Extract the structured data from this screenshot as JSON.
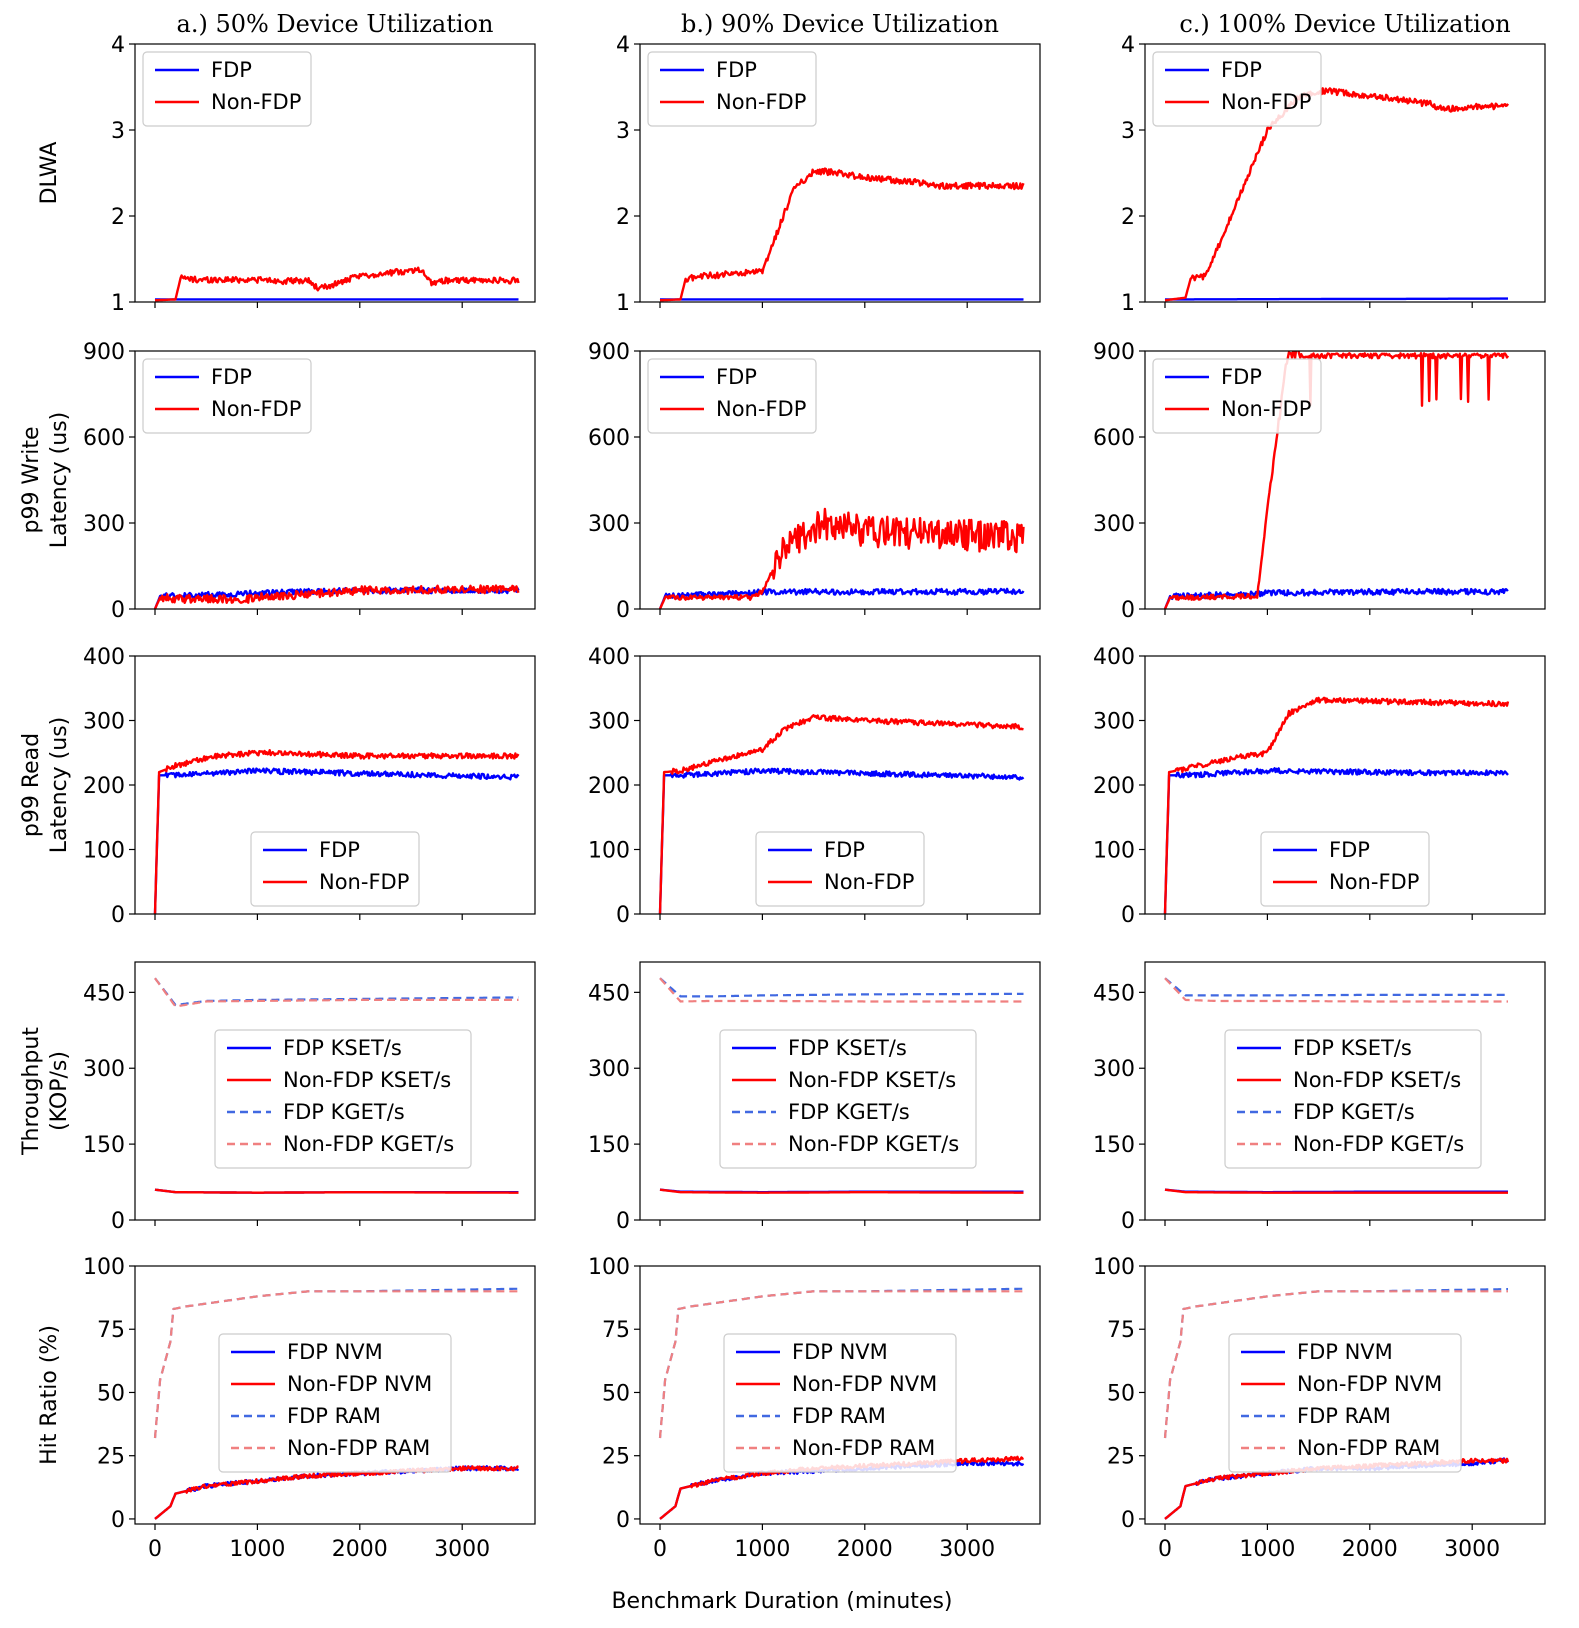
{
  "chart_data": {
    "type": "line",
    "x_axis": {
      "label": "Benchmark Duration (minutes)",
      "ticks": [
        0,
        1000,
        2000,
        3000
      ]
    },
    "columns": [
      {
        "title": "a.) 50% Device Utilization",
        "x_max": 3550
      },
      {
        "title": "b.) 90% Device Utilization",
        "x_max": 3550
      },
      {
        "title": "c.) 100% Device Utilization",
        "x_max": 3350
      }
    ],
    "rows": [
      {
        "id": "dlwa",
        "ylabel": [
          "DLWA"
        ],
        "ylim": [
          1,
          4
        ],
        "yticks": [
          1,
          2,
          3,
          4
        ],
        "legend_loc": "upper-left",
        "series": [
          {
            "name": "FDP",
            "color": "#0000ff",
            "dashed": false,
            "x": [
              0,
              3550
            ],
            "values": [
              [
                1.03,
                1.03
              ],
              [
                1.03,
                1.03
              ],
              [
                1.03,
                1.04
              ]
            ]
          },
          {
            "name": "Non-FDP",
            "color": "#ff0000",
            "dashed": false,
            "x": [
              0,
              200,
              250,
              400,
              1000,
              1300,
              1500,
              1600,
              2000,
              2600,
              2700,
              2800,
              3550
            ],
            "values": [
              [
                1.02,
                1.03,
                1.28,
                1.26,
                1.26,
                1.24,
                1.25,
                1.15,
                1.3,
                1.38,
                1.22,
                1.25,
                1.25
              ],
              [
                1.02,
                1.03,
                1.27,
                1.3,
                1.35,
                2.3,
                2.52,
                2.52,
                2.45,
                2.38,
                2.35,
                2.35,
                2.35
              ],
              [
                1.02,
                1.05,
                1.27,
                1.3,
                3.0,
                3.38,
                3.45,
                3.45,
                3.4,
                3.3,
                3.25,
                3.25,
                3.3
              ]
            ]
          }
        ]
      },
      {
        "id": "write",
        "ylabel": [
          "p99  Write",
          "Latency (us)"
        ],
        "ylim": [
          0,
          900
        ],
        "yticks": [
          0,
          300,
          600,
          900
        ],
        "legend_loc": "upper-left",
        "series": [
          {
            "name": "FDP",
            "color": "#0000ff",
            "dashed": false,
            "x": [
              0,
              50,
              200,
              1000,
              2000,
              3550
            ],
            "values": [
              [
                0,
                45,
                45,
                55,
                65,
                65
              ],
              [
                0,
                45,
                45,
                60,
                60,
                60
              ],
              [
                0,
                45,
                45,
                55,
                60,
                60
              ]
            ]
          },
          {
            "name": "Non-FDP",
            "color": "#ff0000",
            "dashed": false,
            "x": [
              0,
              50,
              200,
              900,
              1000,
              1200,
              1600,
              2000,
              3550
            ],
            "values": [
              [
                0,
                40,
                35,
                35,
                40,
                45,
                55,
                65,
                70
              ],
              [
                0,
                40,
                40,
                40,
                60,
                210,
                300,
                270,
                250
              ],
              [
                0,
                40,
                40,
                45,
                350,
                890,
                900,
                900,
                900
              ]
            ]
          }
        ]
      },
      {
        "id": "read",
        "ylabel": [
          "p99  Read",
          "Latency (us)"
        ],
        "ylim": [
          0,
          400
        ],
        "yticks": [
          0,
          100,
          200,
          300,
          400
        ],
        "legend_loc": "lower-center",
        "series": [
          {
            "name": "FDP",
            "color": "#0000ff",
            "dashed": false,
            "x": [
              0,
              40,
              200,
              1000,
              2000,
              3550
            ],
            "values": [
              [
                0,
                215,
                215,
                222,
                218,
                212
              ],
              [
                0,
                215,
                215,
                222,
                218,
                212
              ],
              [
                0,
                215,
                215,
                222,
                220,
                218
              ]
            ]
          },
          {
            "name": "Non-FDP",
            "color": "#ff0000",
            "dashed": false,
            "x": [
              0,
              40,
              200,
              600,
              1000,
              1200,
              1500,
              2000,
              3550
            ],
            "values": [
              [
                0,
                220,
                230,
                245,
                250,
                250,
                248,
                245,
                245
              ],
              [
                0,
                220,
                222,
                240,
                255,
                285,
                305,
                300,
                290
              ],
              [
                0,
                220,
                225,
                240,
                250,
                310,
                332,
                330,
                325
              ]
            ]
          }
        ]
      },
      {
        "id": "throughput",
        "ylabel": [
          "Throughput",
          "(KOP/s)"
        ],
        "ylim": [
          0,
          510
        ],
        "yticks": [
          0,
          150,
          300,
          450
        ],
        "legend_loc": "center-left",
        "series": [
          {
            "name": "FDP KSET/s",
            "color": "#0000ff",
            "dashed": false,
            "x": [
              0,
              200,
              1000,
              2000,
              3550
            ],
            "values": [
              [
                60,
                55,
                54,
                55,
                55
              ],
              [
                60,
                56,
                55,
                56,
                56
              ],
              [
                60,
                56,
                55,
                56,
                56
              ]
            ]
          },
          {
            "name": "Non-FDP KSET/s",
            "color": "#ff0000",
            "dashed": false,
            "x": [
              0,
              200,
              1000,
              2000,
              3550
            ],
            "values": [
              [
                60,
                55,
                54,
                55,
                54
              ],
              [
                60,
                55,
                54,
                55,
                54
              ],
              [
                60,
                55,
                54,
                54,
                54
              ]
            ]
          },
          {
            "name": "FDP KGET/s",
            "color": "#4169e1",
            "dashed": true,
            "x": [
              0,
              200,
              500,
              1000,
              2000,
              3550
            ],
            "values": [
              [
                478,
                425,
                433,
                435,
                437,
                440
              ],
              [
                478,
                442,
                442,
                444,
                446,
                447
              ],
              [
                478,
                444,
                444,
                444,
                445,
                445
              ]
            ]
          },
          {
            "name": "Non-FDP KGET/s",
            "color": "#f08080",
            "dashed": true,
            "x": [
              0,
              200,
              500,
              1000,
              2000,
              3550
            ],
            "values": [
              [
                478,
                422,
                432,
                433,
                435,
                435
              ],
              [
                478,
                432,
                433,
                433,
                432,
                432
              ],
              [
                478,
                435,
                433,
                433,
                432,
                432
              ]
            ]
          }
        ]
      },
      {
        "id": "hitratio",
        "ylabel": [
          "Hit Ratio (%)"
        ],
        "ylim": [
          -2,
          100
        ],
        "yticks": [
          0,
          25,
          50,
          75,
          100
        ],
        "legend_loc": "center",
        "series": [
          {
            "name": "FDP NVM",
            "color": "#0000ff",
            "dashed": false,
            "x": [
              0,
              150,
              200,
              500,
              1000,
              1500,
              2000,
              2500,
              3000,
              3550
            ],
            "values": [
              [
                0,
                5,
                10,
                13,
                15,
                17,
                18,
                19,
                20,
                20
              ],
              [
                0,
                5,
                12,
                15,
                18,
                19,
                20,
                21,
                22,
                22
              ],
              [
                0,
                5,
                13,
                16,
                18,
                20,
                20,
                21,
                22,
                24
              ]
            ]
          },
          {
            "name": "Non-FDP NVM",
            "color": "#ff0000",
            "dashed": false,
            "x": [
              0,
              150,
              200,
              500,
              1000,
              1500,
              2000,
              2500,
              3000,
              3550
            ],
            "values": [
              [
                0,
                5,
                10,
                13,
                15,
                17,
                18,
                19,
                20,
                20
              ],
              [
                0,
                5,
                12,
                15,
                18,
                20,
                21,
                22,
                23,
                24
              ],
              [
                0,
                5,
                13,
                16,
                18,
                20,
                21,
                22,
                23,
                23
              ]
            ]
          },
          {
            "name": "FDP RAM",
            "color": "#4169e1",
            "dashed": true,
            "x": [
              0,
              50,
              150,
              180,
              300,
              1000,
              1500,
              2000,
              3550
            ],
            "values": [
              [
                32,
                55,
                70,
                83,
                84,
                88,
                90,
                90,
                91
              ],
              [
                32,
                55,
                70,
                83,
                84,
                88,
                90,
                90,
                91
              ],
              [
                32,
                55,
                70,
                83,
                84,
                88,
                90,
                90,
                91
              ]
            ]
          },
          {
            "name": "Non-FDP RAM",
            "color": "#f08080",
            "dashed": true,
            "x": [
              0,
              50,
              150,
              180,
              300,
              1000,
              1500,
              2000,
              3550
            ],
            "values": [
              [
                32,
                55,
                70,
                83,
                84,
                88,
                90,
                90,
                90
              ],
              [
                32,
                55,
                70,
                83,
                84,
                88,
                90,
                90,
                90
              ],
              [
                32,
                55,
                70,
                83,
                84,
                88,
                90,
                90,
                90
              ]
            ]
          }
        ]
      }
    ]
  }
}
